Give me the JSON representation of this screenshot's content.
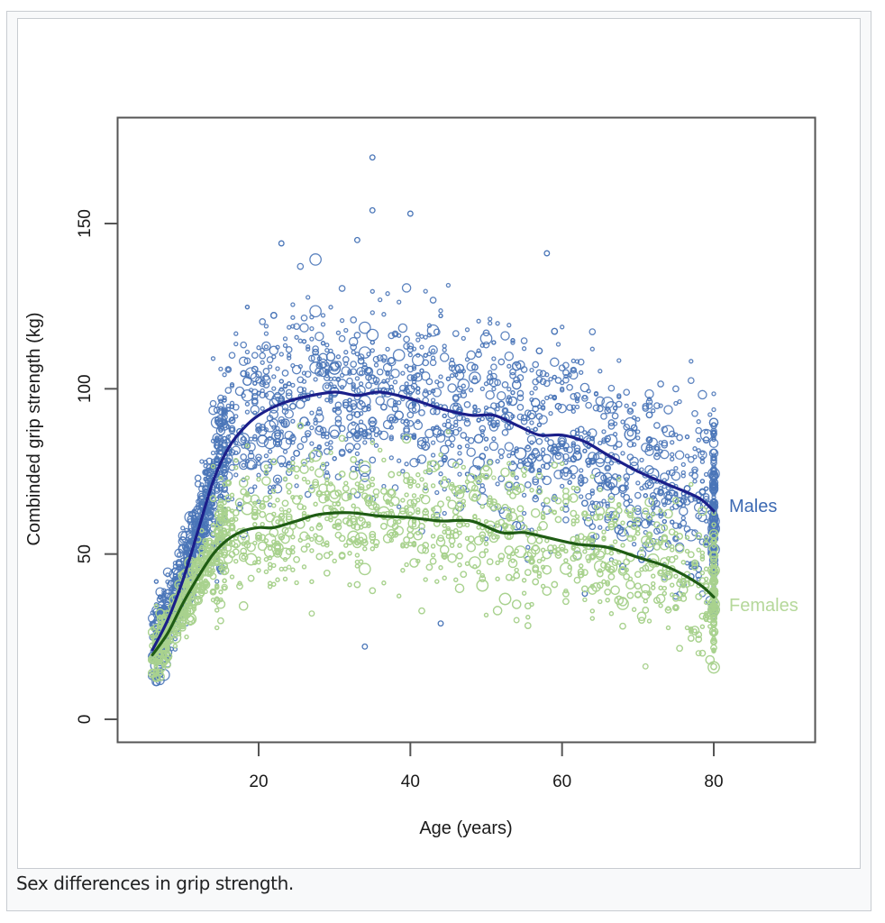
{
  "figure": {
    "caption": "Sex differences in grip strength."
  },
  "chart_data": {
    "type": "scatter",
    "title": "",
    "xlabel": "Age (years)",
    "ylabel": "Combinded grip strength (kg)",
    "xlim": [
      1,
      93
    ],
    "ylim": [
      -7,
      182
    ],
    "xticks": [
      20,
      40,
      60,
      80
    ],
    "xtick_labels": [
      "20",
      "40",
      "60",
      "80"
    ],
    "yticks": [
      0,
      50,
      100,
      150
    ],
    "ytick_labels": [
      "0",
      "50",
      "100",
      "150"
    ],
    "grid": false,
    "legend": "direct labels at right end of curves",
    "series": [
      {
        "name": "Males",
        "label": "Males",
        "point_color": "#4a76b8",
        "label_color": "#3d6ab3",
        "line_color": "#1b1f8a",
        "points": {
          "marker": "open-circle",
          "x_range": [
            6,
            80
          ],
          "approx_count": 2600,
          "spread_sd_kg": 14
        },
        "smooth_curve": {
          "x": [
            6,
            8,
            10,
            12,
            14,
            16,
            18,
            20,
            23,
            26,
            30,
            33,
            36,
            40,
            44,
            48,
            51,
            54,
            57,
            60,
            63,
            66,
            70,
            74,
            78,
            80
          ],
          "y": [
            21,
            30,
            42,
            57,
            72,
            82,
            88,
            92,
            95.5,
            97.5,
            99,
            98,
            99,
            97,
            94,
            92,
            92,
            89,
            86,
            86,
            84,
            80,
            75,
            71,
            67,
            63
          ]
        },
        "outliers": [
          {
            "x": 35,
            "y": 170
          },
          {
            "x": 35,
            "y": 154
          },
          {
            "x": 40,
            "y": 153
          },
          {
            "x": 58,
            "y": 141
          },
          {
            "x": 23,
            "y": 144
          },
          {
            "x": 33,
            "y": 145
          },
          {
            "x": 34,
            "y": 22
          },
          {
            "x": 44,
            "y": 29
          },
          {
            "x": 63,
            "y": 38
          }
        ]
      },
      {
        "name": "Females",
        "label": "Females",
        "point_color": "#a9d18e",
        "label_color": "#b5d89a",
        "line_color": "#1f5c14",
        "points": {
          "marker": "open-circle",
          "x_range": [
            6,
            80
          ],
          "approx_count": 3000,
          "spread_sd_kg": 10
        },
        "smooth_curve": {
          "x": [
            6,
            8,
            10,
            12,
            14,
            16,
            18,
            20,
            22,
            25,
            28,
            32,
            36,
            40,
            44,
            48,
            52,
            55,
            58,
            62,
            66,
            70,
            74,
            78,
            80
          ],
          "y": [
            19.5,
            26,
            35,
            43,
            50,
            54.5,
            57,
            58,
            58,
            60,
            62,
            62.5,
            61.5,
            61,
            60,
            60,
            56.5,
            56.5,
            55,
            53,
            52,
            49,
            46,
            41,
            37
          ]
        },
        "outliers": [
          {
            "x": 71,
            "y": 16
          },
          {
            "x": 78,
            "y": 20
          },
          {
            "x": 27,
            "y": 32
          },
          {
            "x": 54,
            "y": 30
          }
        ]
      }
    ]
  }
}
